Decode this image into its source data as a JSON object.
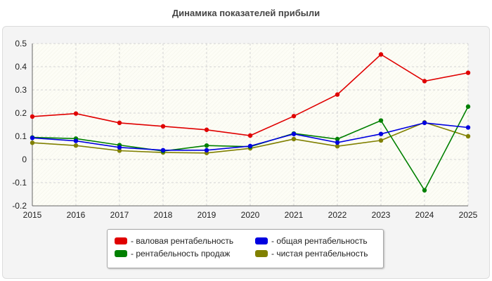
{
  "chart_data": {
    "type": "line",
    "title": "Динамика показателей прибыли",
    "x": [
      2015,
      2016,
      2017,
      2018,
      2019,
      2020,
      2021,
      2022,
      2023,
      2024,
      2025
    ],
    "ylim": [
      -0.2,
      0.5
    ],
    "yticks": [
      0.5,
      0.4,
      0.3,
      0.2,
      0.1,
      0,
      -0.1,
      -0.2
    ],
    "ytick_labels": [
      "0.5",
      "0.4",
      "0.3",
      "0.2",
      "0.1",
      "0",
      "-0.1",
      "-0.2"
    ],
    "grid": true,
    "legend_position": "bottom",
    "series": [
      {
        "name": "- валовая рентабельность",
        "color": "#e00000",
        "values": [
          0.185,
          0.198,
          0.158,
          0.143,
          0.128,
          0.103,
          0.187,
          0.28,
          0.453,
          0.338,
          0.374
        ]
      },
      {
        "name": "- общая рентабельность",
        "color": "#0000e0",
        "values": [
          0.093,
          0.08,
          0.052,
          0.04,
          0.04,
          0.058,
          0.11,
          0.073,
          0.11,
          0.158,
          0.138
        ]
      },
      {
        "name": "- рентабельность продаж",
        "color": "#008000",
        "values": [
          0.095,
          0.09,
          0.062,
          0.036,
          0.06,
          0.055,
          0.112,
          0.088,
          0.168,
          -0.133,
          0.228
        ]
      },
      {
        "name": "- чистая рентабельность",
        "color": "#808000",
        "values": [
          0.072,
          0.06,
          0.038,
          0.03,
          0.028,
          0.048,
          0.088,
          0.057,
          0.082,
          0.16,
          0.1
        ]
      }
    ]
  }
}
